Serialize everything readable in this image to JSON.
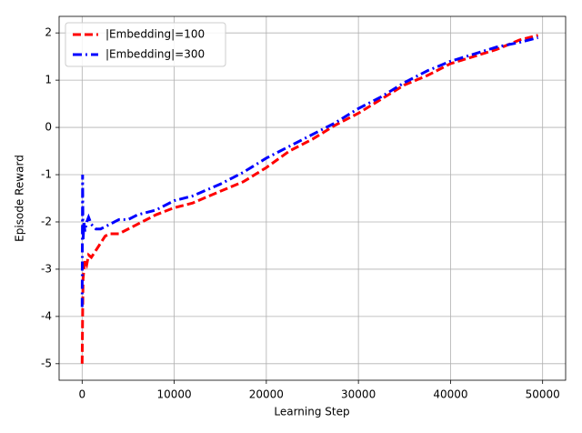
{
  "chart_data": {
    "type": "line",
    "xlabel": "Learning Step",
    "ylabel": "Episode Reward",
    "x": [
      0,
      50,
      100,
      200,
      300,
      500,
      700,
      1000,
      1500,
      2000,
      2500,
      3000,
      4000,
      5000,
      6000,
      8000,
      10000,
      12000,
      15000,
      17500,
      20000,
      22500,
      25000,
      27500,
      30000,
      32500,
      35000,
      37500,
      40000,
      42500,
      45000,
      47500,
      49500
    ],
    "series": [
      {
        "name": "|Embedding|=100",
        "color": "#ff0000",
        "dash": "dashed",
        "values": [
          -5.0,
          -4.0,
          -3.2,
          -3.0,
          -2.8,
          -2.9,
          -2.7,
          -2.75,
          -2.6,
          -2.45,
          -2.3,
          -2.25,
          -2.25,
          -2.15,
          -2.05,
          -1.85,
          -1.7,
          -1.6,
          -1.35,
          -1.15,
          -0.85,
          -0.5,
          -0.25,
          0.05,
          0.3,
          0.6,
          0.9,
          1.1,
          1.35,
          1.5,
          1.65,
          1.85,
          1.95
        ]
      },
      {
        "name": "|Embedding|=300",
        "color": "#0000ff",
        "dash": "dashdot",
        "values": [
          -3.8,
          -1.0,
          -2.4,
          -2.0,
          -2.2,
          -2.0,
          -1.9,
          -2.05,
          -2.15,
          -2.15,
          -2.1,
          -2.05,
          -1.95,
          -1.95,
          -1.85,
          -1.75,
          -1.55,
          -1.45,
          -1.2,
          -0.95,
          -0.65,
          -0.4,
          -0.15,
          0.1,
          0.4,
          0.65,
          0.95,
          1.2,
          1.4,
          1.55,
          1.7,
          1.8,
          1.9
        ]
      }
    ],
    "xlim": [
      -2500,
      52500
    ],
    "ylim": [
      -5.35,
      2.35
    ],
    "xticks": [
      0,
      10000,
      20000,
      30000,
      40000,
      50000
    ],
    "yticks": [
      -5,
      -4,
      -3,
      -2,
      -1,
      0,
      1,
      2
    ],
    "grid": true,
    "legend": "upper left"
  }
}
